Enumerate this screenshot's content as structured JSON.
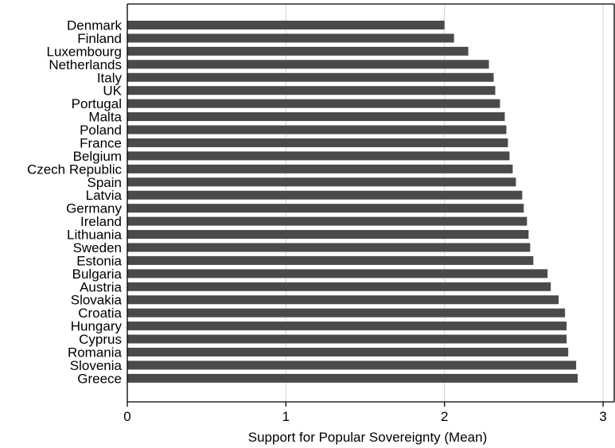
{
  "chart_data": {
    "type": "bar",
    "orientation": "horizontal",
    "title": "",
    "xlabel": "Support for Popular Sovereignty (Mean)",
    "ylabel": "",
    "xlim": [
      0,
      3.07
    ],
    "xticks": [
      0,
      1,
      2,
      3
    ],
    "grid": "vertical",
    "legend": "none",
    "bar_color": "#4a4a4a",
    "grid_color": "#d9d9d9",
    "categories": [
      "Denmark",
      "Finland",
      "Luxembourg",
      "Netherlands",
      "Italy",
      "UK",
      "Portugal",
      "Malta",
      "Poland",
      "France",
      "Belgium",
      "Czech Republic",
      "Spain",
      "Latvia",
      "Germany",
      "Ireland",
      "Lithuania",
      "Sweden",
      "Estonia",
      "Bulgaria",
      "Austria",
      "Slovakia",
      "Croatia",
      "Hungary",
      "Cyprus",
      "Romania",
      "Slovenia",
      "Greece"
    ],
    "values": [
      2.0,
      2.06,
      2.15,
      2.28,
      2.31,
      2.32,
      2.35,
      2.38,
      2.39,
      2.4,
      2.41,
      2.43,
      2.45,
      2.49,
      2.5,
      2.52,
      2.53,
      2.54,
      2.56,
      2.65,
      2.67,
      2.72,
      2.76,
      2.77,
      2.77,
      2.78,
      2.83,
      2.84
    ]
  }
}
